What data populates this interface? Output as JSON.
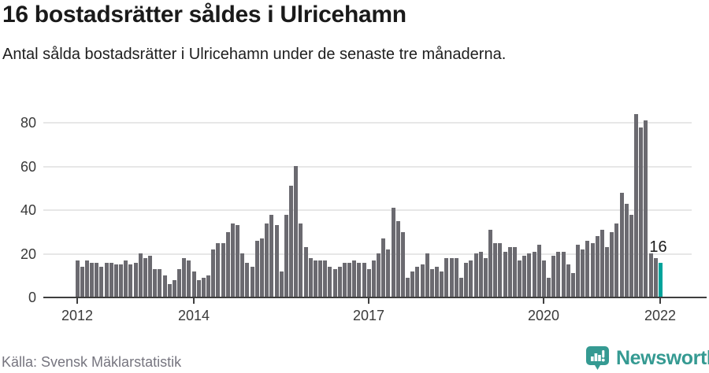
{
  "header": {
    "title": "16 bostadsrätter såldes i Ulricehamn",
    "subtitle": "Antal sålda bostadsrätter i Ulricehamn under de senaste tre månaderna."
  },
  "chart_data": {
    "type": "bar",
    "title": "16 bostadsrätter såldes i Ulricehamn",
    "subtitle": "Antal sålda bostadsrätter i Ulricehamn under de senaste tre månaderna.",
    "frequency": "monthly",
    "start": "2012-01",
    "end": "2022-01",
    "series": [
      {
        "year": "2012",
        "monthly_values": [
          17,
          14,
          17,
          16,
          16,
          14,
          16,
          16,
          15,
          15,
          17,
          15
        ]
      },
      {
        "year": "2013",
        "monthly_values": [
          16,
          20,
          18,
          19,
          13,
          13,
          10,
          6,
          8,
          13,
          18,
          17
        ]
      },
      {
        "year": "2014",
        "monthly_values": [
          12,
          8,
          9,
          10,
          22,
          25,
          25,
          30,
          34,
          33,
          20,
          16
        ]
      },
      {
        "year": "2015",
        "monthly_values": [
          14,
          26,
          27,
          34,
          38,
          33,
          12,
          38,
          51,
          60,
          34,
          23
        ]
      },
      {
        "year": "2016",
        "monthly_values": [
          18,
          17,
          17,
          17,
          14,
          13,
          14,
          16,
          16,
          17,
          16,
          16
        ]
      },
      {
        "year": "2017",
        "monthly_values": [
          13,
          17,
          20,
          27,
          22,
          41,
          35,
          30,
          9,
          12,
          14,
          15
        ]
      },
      {
        "year": "2018",
        "monthly_values": [
          20,
          13,
          14,
          12,
          18,
          18,
          18,
          9,
          16,
          17,
          20,
          21
        ]
      },
      {
        "year": "2019",
        "monthly_values": [
          18,
          31,
          25,
          25,
          21,
          23,
          23,
          17,
          19,
          20,
          21,
          24
        ]
      },
      {
        "year": "2020",
        "monthly_values": [
          17,
          9,
          19,
          21,
          21,
          15,
          11,
          24,
          22,
          26,
          25,
          28
        ]
      },
      {
        "year": "2021",
        "monthly_values": [
          31,
          23,
          30,
          34,
          48,
          43,
          38,
          84,
          78,
          81,
          20,
          18
        ]
      },
      {
        "year": "2022",
        "monthly_values": [
          16
        ]
      }
    ],
    "highlight": {
      "index": 120,
      "label": "16",
      "value": 16
    },
    "yticks": [
      0,
      20,
      40,
      60,
      80
    ],
    "ylim": [
      0,
      85
    ],
    "xticks": [
      {
        "label": "2012",
        "index": 0
      },
      {
        "label": "2014",
        "index": 24
      },
      {
        "label": "2017",
        "index": 60
      },
      {
        "label": "2020",
        "index": 96
      },
      {
        "label": "2022",
        "index": 120
      }
    ],
    "grid": "horizontal",
    "legend": "none",
    "colors": {
      "bar": "#6b6a70",
      "highlight": "#00a39b",
      "grid": "#e7e7e7",
      "axis": "#3e3e3e"
    }
  },
  "footer": {
    "source": "Källa: Svensk Mäklarstatistik",
    "brand": "Newsworthy",
    "brand_color": "#359a92"
  }
}
